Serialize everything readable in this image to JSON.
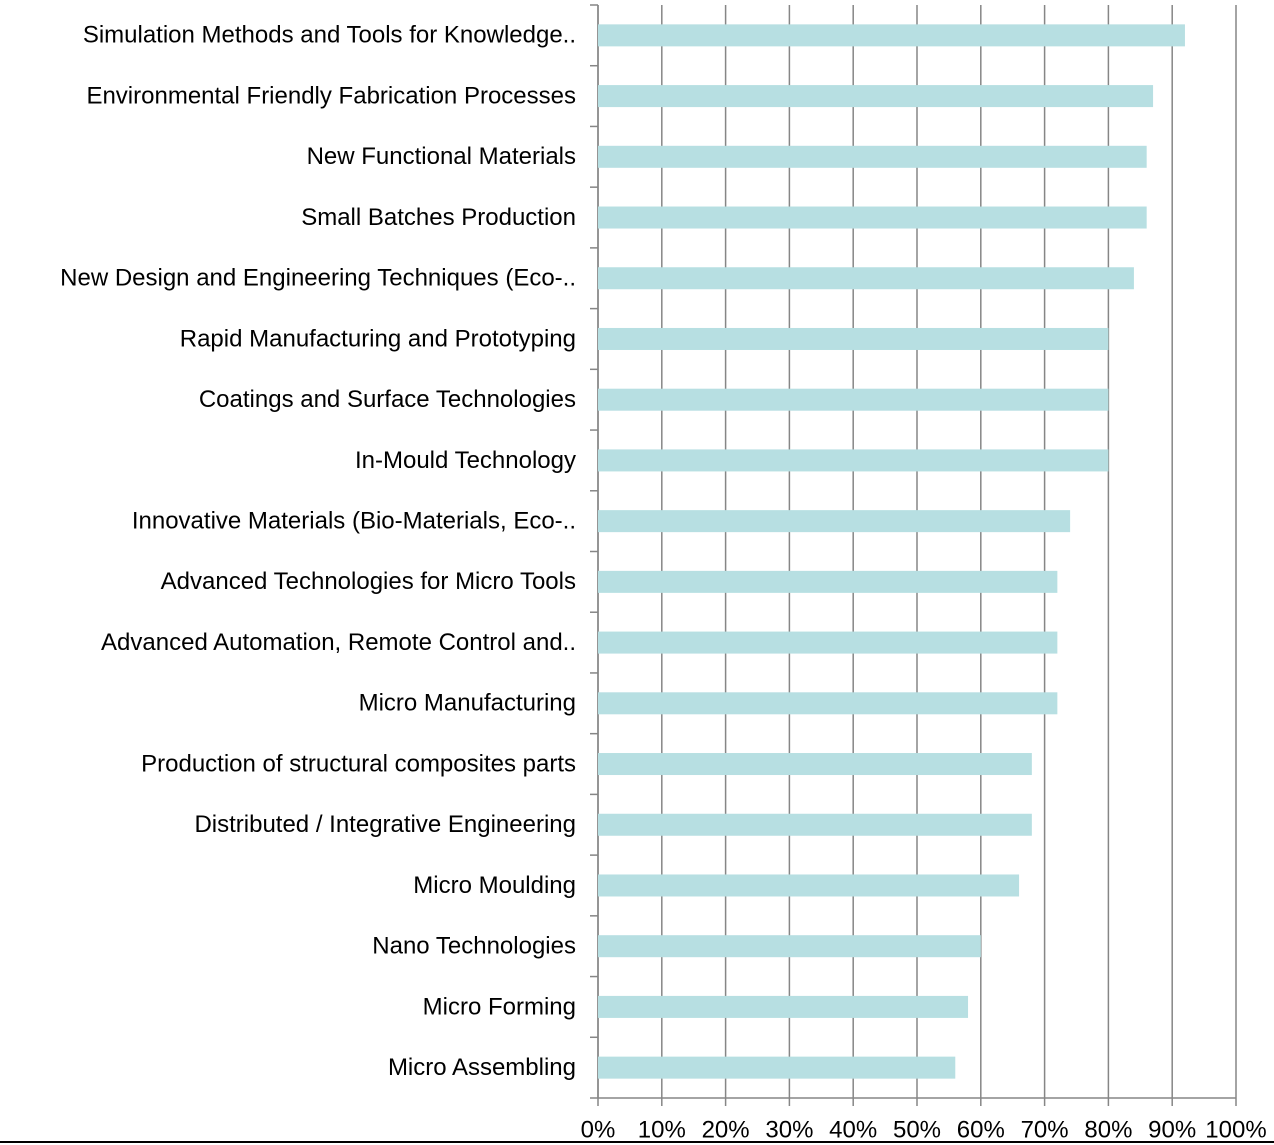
{
  "chart_data": {
    "type": "barh",
    "categories": [
      "Simulation Methods and Tools for Knowledge..",
      "Environmental Friendly Fabrication Processes",
      "New Functional Materials",
      "Small Batches Production",
      "New Design and Engineering Techniques (Eco-..",
      "Rapid Manufacturing and Prototyping",
      "Coatings and Surface Technologies",
      "In-Mould Technology",
      "Innovative Materials (Bio-Materials, Eco-..",
      "Advanced Technologies for Micro Tools",
      "Advanced Automation, Remote Control and..",
      "Micro Manufacturing",
      "Production of structural composites parts",
      "Distributed / Integrative Engineering",
      "Micro Moulding",
      "Nano Technologies",
      "Micro Forming",
      "Micro Assembling"
    ],
    "values": [
      92,
      87,
      86,
      86,
      84,
      80,
      80,
      80,
      74,
      72,
      72,
      72,
      68,
      68,
      66,
      60,
      58,
      56
    ],
    "color": "#b7dfe2",
    "xlim": [
      0,
      100
    ],
    "xticks": [
      {
        "value": 0,
        "label": "0%"
      },
      {
        "value": 10,
        "label": "10%"
      },
      {
        "value": 20,
        "label": "20%"
      },
      {
        "value": 30,
        "label": "30%"
      },
      {
        "value": 40,
        "label": "40%"
      },
      {
        "value": 50,
        "label": "50%"
      },
      {
        "value": 60,
        "label": "60%"
      },
      {
        "value": 70,
        "label": "70%"
      },
      {
        "value": 80,
        "label": "80%"
      },
      {
        "value": 90,
        "label": "90%"
      },
      {
        "value": 100,
        "label": "100%"
      }
    ],
    "grid": true
  }
}
